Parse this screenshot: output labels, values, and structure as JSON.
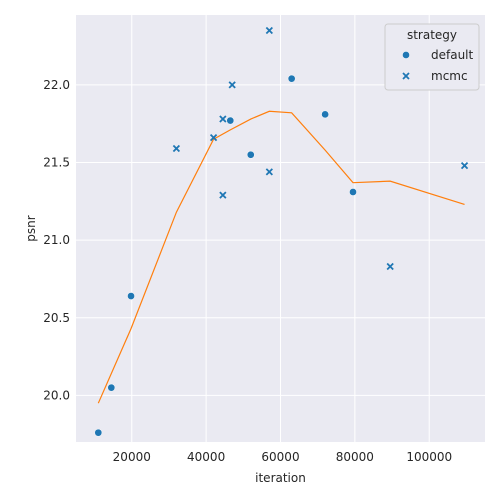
{
  "chart_data": {
    "type": "scatter",
    "xlabel": "iteration",
    "ylabel": "psnr",
    "xlim": [
      5000,
      115000
    ],
    "ylim": [
      19.7,
      22.45
    ],
    "x_ticks": [
      20000,
      40000,
      60000,
      80000,
      100000
    ],
    "x_tick_labels": [
      "20000",
      "40000",
      "60000",
      "80000",
      "100000"
    ],
    "y_ticks": [
      20.0,
      20.5,
      21.0,
      21.5,
      22.0
    ],
    "y_tick_labels": [
      "20.0",
      "20.5",
      "21.0",
      "21.5",
      "22.0"
    ],
    "grid": true,
    "legend": {
      "title": "strategy",
      "placement": "top-right",
      "entries": [
        "default",
        "mcmc"
      ]
    },
    "series": [
      {
        "name": "default",
        "marker": "circle",
        "color": "#1f77b4",
        "points": [
          {
            "x": 11000,
            "y": 19.76
          },
          {
            "x": 14500,
            "y": 20.05
          },
          {
            "x": 19800,
            "y": 20.64
          },
          {
            "x": 46500,
            "y": 21.77
          },
          {
            "x": 52000,
            "y": 21.55
          },
          {
            "x": 63000,
            "y": 22.04
          },
          {
            "x": 72000,
            "y": 21.81
          },
          {
            "x": 79500,
            "y": 21.31
          }
        ]
      },
      {
        "name": "mcmc",
        "marker": "x",
        "color": "#1f77b4",
        "points": [
          {
            "x": 32000,
            "y": 21.59
          },
          {
            "x": 42000,
            "y": 21.66
          },
          {
            "x": 44500,
            "y": 21.78
          },
          {
            "x": 44500,
            "y": 21.29
          },
          {
            "x": 47000,
            "y": 22.0
          },
          {
            "x": 57000,
            "y": 22.35
          },
          {
            "x": 57000,
            "y": 21.44
          },
          {
            "x": 89500,
            "y": 20.83
          },
          {
            "x": 109500,
            "y": 21.48
          }
        ]
      }
    ],
    "trend_line": {
      "color": "#ff7f0e",
      "points": [
        {
          "x": 11000,
          "y": 19.95
        },
        {
          "x": 19800,
          "y": 20.43
        },
        {
          "x": 32000,
          "y": 21.18
        },
        {
          "x": 42000,
          "y": 21.65
        },
        {
          "x": 46500,
          "y": 21.71
        },
        {
          "x": 52000,
          "y": 21.78
        },
        {
          "x": 57000,
          "y": 21.83
        },
        {
          "x": 63000,
          "y": 21.82
        },
        {
          "x": 72000,
          "y": 21.58
        },
        {
          "x": 79500,
          "y": 21.37
        },
        {
          "x": 89500,
          "y": 21.38
        },
        {
          "x": 109500,
          "y": 21.23
        }
      ]
    }
  }
}
